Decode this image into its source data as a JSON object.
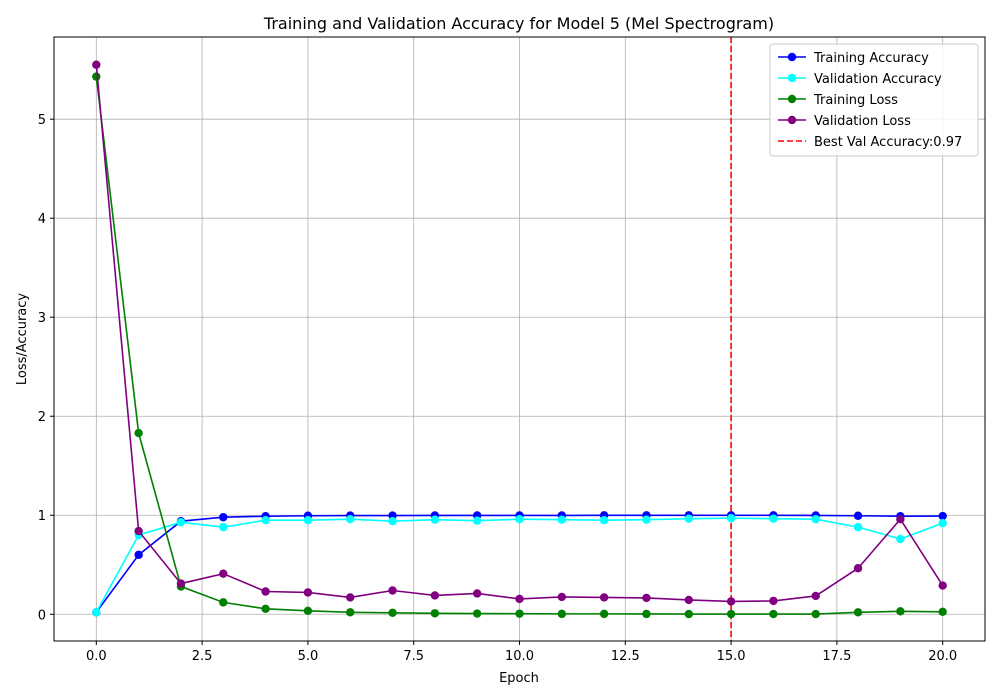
{
  "chart_data": {
    "type": "line",
    "title": "Training and Validation Accuracy for Model 5 (Mel Spectrogram)",
    "xlabel": "Epoch",
    "ylabel": "Loss/Accuracy",
    "xlim": [
      -1.0,
      21.0
    ],
    "ylim": [
      -0.27,
      5.83
    ],
    "xticks": [
      0.0,
      2.5,
      5.0,
      7.5,
      10.0,
      12.5,
      15.0,
      17.5,
      20.0
    ],
    "xtick_labels": [
      "0.0",
      "2.5",
      "5.0",
      "7.5",
      "10.0",
      "12.5",
      "15.0",
      "17.5",
      "20.0"
    ],
    "yticks": [
      0,
      1,
      2,
      3,
      4,
      5
    ],
    "ytick_labels": [
      "0",
      "1",
      "2",
      "3",
      "4",
      "5"
    ],
    "grid": true,
    "legend_position": "top-right",
    "x": [
      0,
      1,
      2,
      3,
      4,
      5,
      6,
      7,
      8,
      9,
      10,
      11,
      12,
      13,
      14,
      15,
      16,
      17,
      18,
      19,
      20
    ],
    "series": [
      {
        "name": "Training Accuracy",
        "color": "#0000ff",
        "values": [
          0.02,
          0.6,
          0.94,
          0.98,
          0.99,
          0.995,
          0.997,
          0.997,
          0.998,
          0.998,
          0.998,
          0.998,
          0.999,
          0.999,
          0.999,
          0.999,
          0.999,
          0.998,
          0.995,
          0.99,
          0.992
        ]
      },
      {
        "name": "Validation Accuracy",
        "color": "#00ffff",
        "values": [
          0.02,
          0.8,
          0.93,
          0.88,
          0.95,
          0.95,
          0.96,
          0.94,
          0.955,
          0.945,
          0.96,
          0.955,
          0.95,
          0.955,
          0.965,
          0.97,
          0.965,
          0.96,
          0.88,
          0.76,
          0.92
        ]
      },
      {
        "name": "Training Loss",
        "color": "#008000",
        "values": [
          5.43,
          1.83,
          0.28,
          0.12,
          0.055,
          0.035,
          0.02,
          0.015,
          0.01,
          0.007,
          0.006,
          0.004,
          0.004,
          0.003,
          0.002,
          0.002,
          0.002,
          0.002,
          0.02,
          0.03,
          0.025
        ]
      },
      {
        "name": "Validation Loss",
        "color": "#800080",
        "values": [
          5.55,
          0.84,
          0.31,
          0.41,
          0.23,
          0.22,
          0.17,
          0.24,
          0.19,
          0.21,
          0.155,
          0.175,
          0.17,
          0.165,
          0.145,
          0.13,
          0.135,
          0.185,
          0.465,
          0.96,
          0.29
        ]
      }
    ],
    "vline": {
      "x": 15,
      "label": "Best Val Accuracy:0.97",
      "color": "#ff0000"
    }
  }
}
